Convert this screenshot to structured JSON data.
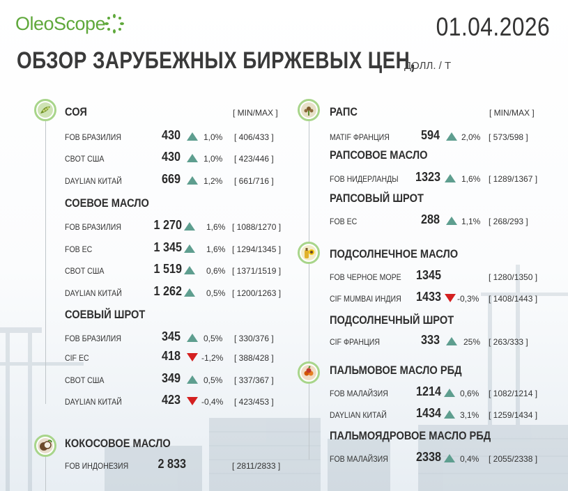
{
  "brand": {
    "logo_text": "OleoScope",
    "accent": "#5fa83b"
  },
  "date": "01.04.2026",
  "title": {
    "main": "ОБЗОР ЗАРУБЕЖНЫХ БИРЖЕВЫХ ЦЕН,",
    "unit": "ДОЛЛ. / Т"
  },
  "colors": {
    "up": "#5e9e8f",
    "down": "#d42020",
    "ring": "#a8d58a"
  },
  "left": {
    "minmax": "[ MIN/MAX ]",
    "soy": {
      "heading": "СОЯ",
      "icon": "soybean-icon",
      "rows": [
        {
          "label": "FOB БРАЗИЛИЯ",
          "value": "430",
          "dir": "up",
          "pct": "1,0%",
          "range": "[ 406/433 ]"
        },
        {
          "label": "CBOT США",
          "value": "430",
          "dir": "up",
          "pct": "1,0%",
          "range": "[ 423/446 ]"
        },
        {
          "label": "DAYLIAN КИТАЙ",
          "value": "669",
          "dir": "up",
          "pct": "1,2%",
          "range": "[ 661/716 ]"
        }
      ]
    },
    "soy_oil": {
      "heading": "СОЕВОЕ МАСЛО",
      "rows": [
        {
          "label": "FOB БРАЗИЛИЯ",
          "value": "1 270",
          "dir": "up",
          "pct": "1,6%",
          "range": "[ 1088/1270 ]"
        },
        {
          "label": "FOB ЕС",
          "value": "1 345",
          "dir": "up",
          "pct": "1,6%",
          "range": "[ 1294/1345 ]"
        },
        {
          "label": "CBOT США",
          "value": "1 519",
          "dir": "up",
          "pct": "0,6%",
          "range": "[ 1371/1519 ]"
        },
        {
          "label": "DAYLIAN КИТАЙ",
          "value": "1 262",
          "dir": "up",
          "pct": "0,5%",
          "range": "[ 1200/1263 ]"
        }
      ]
    },
    "soy_meal": {
      "heading": "СОЕВЫЙ ШРОТ",
      "rows": [
        {
          "label": "FOB БРАЗИЛИЯ",
          "value": "345",
          "dir": "up",
          "pct": "0,5%",
          "range": "[ 330/376 ]"
        },
        {
          "label": "CIF ЕС",
          "value": "418",
          "dir": "down",
          "pct": "-1,2%",
          "range": "[ 388/428 ]"
        },
        {
          "label": "CBOT США",
          "value": "349",
          "dir": "up",
          "pct": "0,5%",
          "range": "[ 337/367 ]"
        },
        {
          "label": "DAYLIAN КИТАЙ",
          "value": "423",
          "dir": "down",
          "pct": "-0,4%",
          "range": "[ 423/453 ]"
        }
      ]
    },
    "coconut_oil": {
      "heading": "КОКОСОВОЕ МАСЛО",
      "icon": "coconut-icon",
      "rows": [
        {
          "label": "FOB ИНДОНЕЗИЯ",
          "value": "2 833",
          "dir": "none",
          "pct": "",
          "range": "[ 2811/2833 ]"
        }
      ]
    }
  },
  "right": {
    "minmax": "[ MIN/MAX ]",
    "rapeseed": {
      "heading": "РАПС",
      "icon": "rapeseed-icon",
      "rows": [
        {
          "label": "MATIF ФРАНЦИЯ",
          "value": "594",
          "dir": "up",
          "pct": "2,0%",
          "range": "[ 573/598 ]"
        }
      ]
    },
    "rapeseed_oil": {
      "heading": "РАПСОВОЕ МАСЛО",
      "rows": [
        {
          "label": "FOB НИДЕРЛАНДЫ",
          "value": "1323",
          "dir": "up",
          "pct": "1,6%",
          "range": "[ 1289/1367 ]"
        }
      ]
    },
    "rapeseed_meal": {
      "heading": "РАПСОВЫЙ ШРОТ",
      "rows": [
        {
          "label": "FOB ЕС",
          "value": "288",
          "dir": "up",
          "pct": "1,1%",
          "range": "[ 268/293 ]"
        }
      ]
    },
    "sunflower_oil": {
      "heading": "ПОДСОЛНЕЧНОЕ МАСЛО",
      "icon": "sunflower-oil-icon",
      "rows": [
        {
          "label": "FOB ЧЕРНОЕ МОРЕ",
          "value": "1345",
          "dir": "none",
          "pct": "",
          "range": "[ 1280/1350 ]"
        },
        {
          "label": "CIF MUMBAI ИНДИЯ",
          "value": "1433",
          "dir": "down",
          "pct": "-0,3%",
          "range": "[ 1408/1443 ]"
        }
      ]
    },
    "sunflower_meal": {
      "heading": "ПОДСОЛНЕЧНЫЙ ШРОТ",
      "rows": [
        {
          "label": "CIF ФРАНЦИЯ",
          "value": "333",
          "dir": "up",
          "pct": "25%",
          "range": "[ 263/333 ]"
        }
      ]
    },
    "palm_oil": {
      "heading": "ПАЛЬМОВОЕ МАСЛО РБД",
      "icon": "palm-fruit-icon",
      "rows": [
        {
          "label": "FOB МАЛАЙЗИЯ",
          "value": "1214",
          "dir": "up",
          "pct": "0,6%",
          "range": "[ 1082/1214 ]"
        },
        {
          "label": "DAYLIAN КИТАЙ",
          "value": "1434",
          "dir": "up",
          "pct": "3,1%",
          "range": "[ 1259/1434 ]"
        }
      ]
    },
    "palm_kernel_oil": {
      "heading": "ПАЛЬМОЯДРОВОЕ МАСЛО РБД",
      "rows": [
        {
          "label": "FOB МАЛАЙЗИЯ",
          "value": "2338",
          "dir": "up",
          "pct": "0,4%",
          "range": "[ 2055/2338 ]"
        }
      ]
    }
  }
}
